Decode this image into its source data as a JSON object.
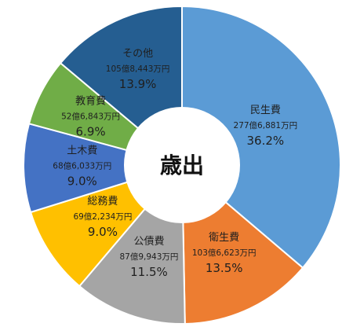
{
  "chart_data": {
    "type": "pie",
    "center_label": "歳出",
    "slices": [
      {
        "name": "民生費",
        "amount": "277億6,881万円",
        "percent_label": "36.2%",
        "value": 36.2,
        "color": "#5b9bd5"
      },
      {
        "name": "衛生費",
        "amount": "103億6,623万円",
        "percent_label": "13.5%",
        "value": 13.5,
        "color": "#ed7d31"
      },
      {
        "name": "公債費",
        "amount": "87億9,943万円",
        "percent_label": "11.5%",
        "value": 11.5,
        "color": "#a5a5a5"
      },
      {
        "name": "総務費",
        "amount": "69億2,234万円",
        "percent_label": "9.0%",
        "value": 9.0,
        "color": "#ffc000"
      },
      {
        "name": "土木費",
        "amount": "68億6,033万円",
        "percent_label": "9.0%",
        "value": 9.0,
        "color": "#4472c4"
      },
      {
        "name": "教育費",
        "amount": "52億6,843万円",
        "percent_label": "6.9%",
        "value": 6.9,
        "color": "#70ad47"
      },
      {
        "name": "その他",
        "amount": "105億8,443万円",
        "percent_label": "13.9%",
        "value": 13.9,
        "color": "#255e91"
      }
    ]
  }
}
